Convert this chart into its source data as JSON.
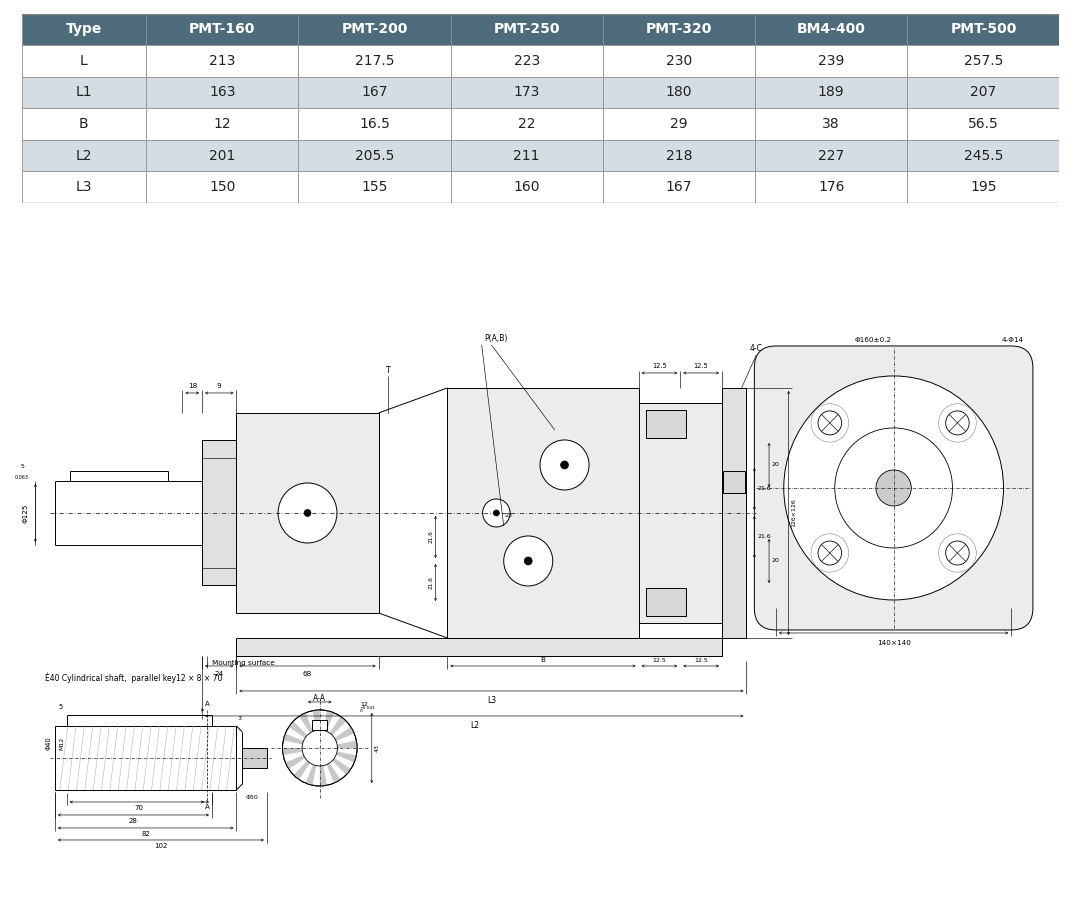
{
  "table_header": [
    "Type",
    "PMT-160",
    "PMT-200",
    "PMT-250",
    "PMT-320",
    "BM4-400",
    "PMT-500"
  ],
  "table_rows": [
    [
      "L",
      "213",
      "217.5",
      "223",
      "230",
      "239",
      "257.5"
    ],
    [
      "L1",
      "163",
      "167",
      "173",
      "180",
      "189",
      "207"
    ],
    [
      "B",
      "12",
      "16.5",
      "22",
      "29",
      "38",
      "56.5"
    ],
    [
      "L2",
      "201",
      "205.5",
      "211",
      "218",
      "227",
      "245.5"
    ],
    [
      "L3",
      "150",
      "155",
      "160",
      "167",
      "176",
      "195"
    ]
  ],
  "header_bg": "#4d6b7a",
  "header_fg": "#ffffff",
  "row_bg_odd": "#ffffff",
  "row_bg_even": "#d4dde2",
  "table_text_color": "#222222",
  "bg_color": "#ffffff",
  "shaft_label": "Ѐ40 Cylindrical shaft,  parallel key12 × 8 × 70"
}
